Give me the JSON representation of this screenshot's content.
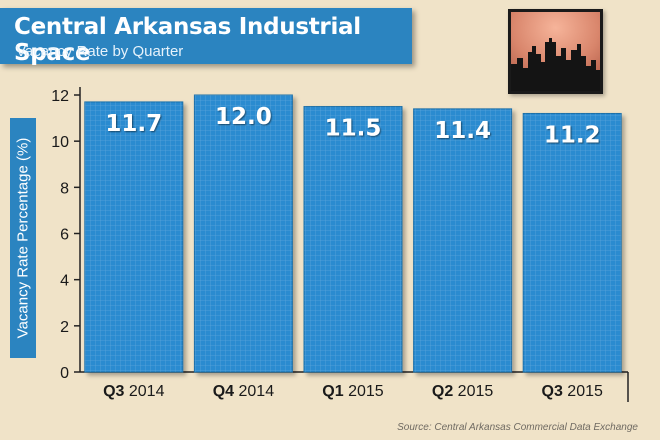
{
  "header": {
    "title": "Central Arkansas Industrial Space",
    "subtitle": "Vacancy Rate by Quarter"
  },
  "image": {
    "icon": "city-skyline-icon"
  },
  "source": "Source: Central Arkansas Commercial Data Exchange",
  "colors": {
    "bar": "#2b8bd0",
    "banner": "#2b84c0",
    "background": "#f0e3c8"
  },
  "chart_data": {
    "type": "bar",
    "title": "Central Arkansas Industrial Space",
    "subtitle": "Vacancy Rate by Quarter",
    "xlabel": "",
    "ylabel": "Vacancy Rate Percentage (%)",
    "categories": [
      {
        "bold": "Q3",
        "rest": " 2014"
      },
      {
        "bold": "Q4",
        "rest": " 2014"
      },
      {
        "bold": "Q1",
        "rest": " 2015"
      },
      {
        "bold": "Q2",
        "rest": " 2015"
      },
      {
        "bold": "Q3",
        "rest": " 2015"
      }
    ],
    "values": [
      11.7,
      12.0,
      11.5,
      11.4,
      11.2
    ],
    "value_labels": [
      "11.7",
      "12.0",
      "11.5",
      "11.4",
      "11.2"
    ],
    "ylim": [
      0,
      12
    ],
    "yticks": [
      "0",
      "2",
      "4",
      "6",
      "8",
      "10",
      "12"
    ],
    "grid": false,
    "legend": "none"
  }
}
